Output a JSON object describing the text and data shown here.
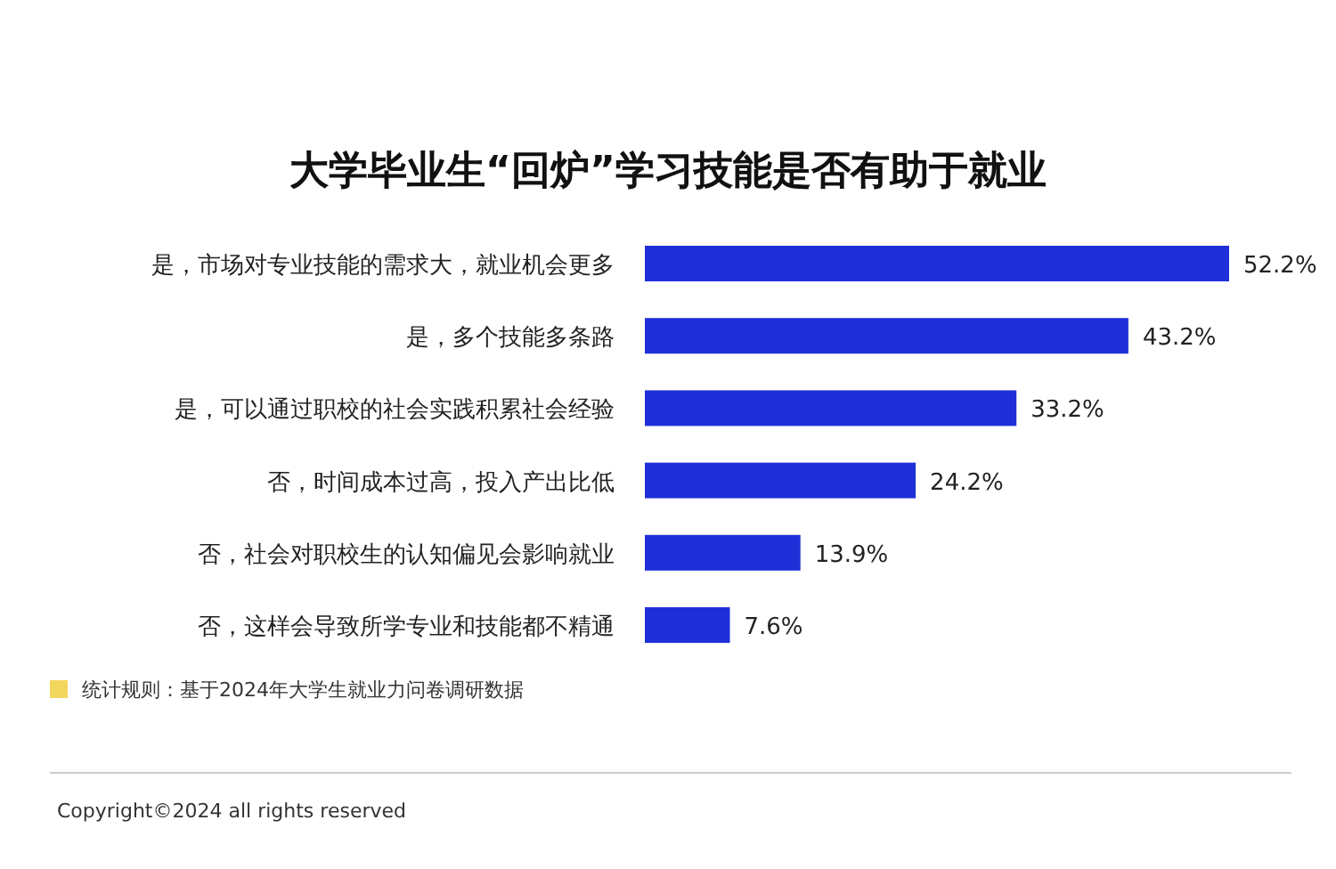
{
  "chart_data": {
    "type": "bar",
    "orientation": "horizontal",
    "title": "大学毕业生“回炉”学习技能是否有助于就业",
    "categories": [
      "是，市场对专业技能的需求大，就业机会更多",
      "是，多个技能多条路",
      "是，可以通过职校的社会实践积累社会经验",
      "否，时间成本过高，投入产出比低",
      "否，社会对职校生的认知偏见会影响就业",
      "否，这样会导致所学专业和技能都不精通"
    ],
    "values": [
      52.2,
      43.2,
      33.2,
      24.2,
      13.9,
      7.6
    ],
    "value_labels": [
      "52.2%",
      "43.2%",
      "33.2%",
      "24.2%",
      "13.9%",
      "7.6%"
    ],
    "color": "#1f2fd8",
    "annotations": [
      "统计规则：基于2024年大学生就业力问卷调研数据",
      "Copyright©2024 all rights reserved"
    ]
  }
}
